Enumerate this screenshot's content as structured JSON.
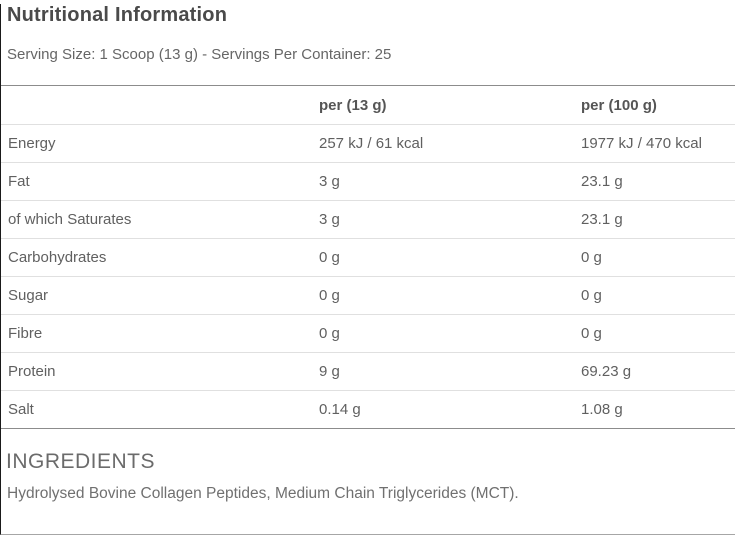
{
  "page": {
    "title": "Nutritional Information",
    "serving_info": "Serving Size: 1 Scoop (13 g) - Servings Per Container: 25"
  },
  "table": {
    "columns": {
      "label": "",
      "per_serving": "per (13 g)",
      "per_100g": "per (100 g)"
    },
    "rows": [
      {
        "label": "Energy",
        "per_serving": "257 kJ / 61 kcal",
        "per_100g": "1977 kJ / 470 kcal"
      },
      {
        "label": "Fat",
        "per_serving": "3 g",
        "per_100g": "23.1 g"
      },
      {
        "label": "of which Saturates",
        "per_serving": "3 g",
        "per_100g": "23.1 g"
      },
      {
        "label": "Carbohydrates",
        "per_serving": "0 g",
        "per_100g": "0 g"
      },
      {
        "label": "Sugar",
        "per_serving": "0 g",
        "per_100g": "0 g"
      },
      {
        "label": "Fibre",
        "per_serving": "0 g",
        "per_100g": "0 g"
      },
      {
        "label": "Protein",
        "per_serving": "9 g",
        "per_100g": "69.23 g"
      },
      {
        "label": "Salt",
        "per_serving": "0.14 g",
        "per_100g": "1.08 g"
      }
    ]
  },
  "ingredients": {
    "heading": "INGREDIENTS",
    "text": "Hydrolysed Bovine Collagen Peptides, Medium Chain Triglycerides (MCT)."
  },
  "colors": {
    "title_text": "#4a4a4a",
    "body_text": "#606060",
    "heavy_rule": "#8c8c8c",
    "light_rule": "#e0e0e0",
    "left_edge": "#1a1a1a",
    "background": "#ffffff"
  }
}
